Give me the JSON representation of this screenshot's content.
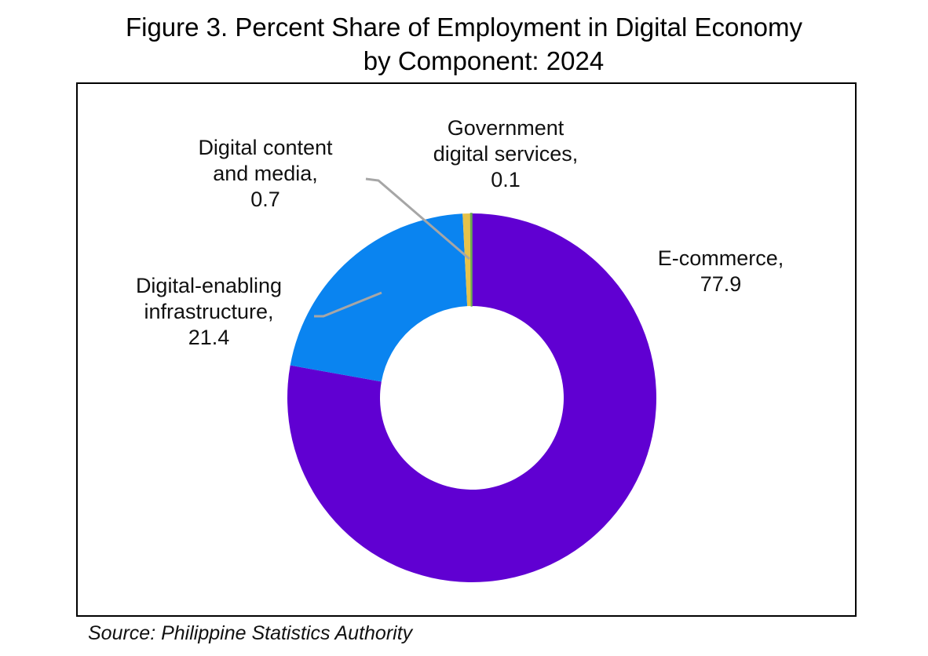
{
  "chart_data": {
    "type": "pie",
    "donut": true,
    "title": [
      "Figure 3. Percent Share of Employment in Digital Economy",
      "by Component: 2024"
    ],
    "slices": [
      {
        "label": "E-commerce",
        "value": 77.9,
        "color": "#6000D2"
      },
      {
        "label": "Digital-enabling infrastructure",
        "value": 21.4,
        "color": "#0A84F0"
      },
      {
        "label": "Digital content and media",
        "value": 0.7,
        "color": "#E6C24A"
      },
      {
        "label": "Government digital services",
        "value": 0.1,
        "color": "#6AAA50"
      }
    ],
    "data_labels": [
      {
        "lines": [
          "E-commerce,",
          "77.9"
        ]
      },
      {
        "lines": [
          "Digital-enabling",
          "infrastructure,",
          "21.4"
        ]
      },
      {
        "lines": [
          "Digital content",
          "and media,",
          "0.7"
        ]
      },
      {
        "lines": [
          "Government",
          "digital services,",
          "0.1"
        ]
      }
    ],
    "source": "Source: Philippine Statistics Authority"
  }
}
